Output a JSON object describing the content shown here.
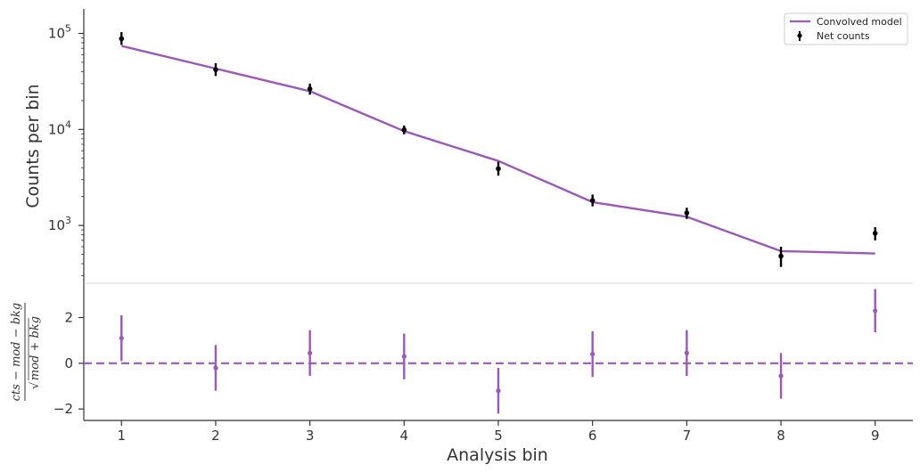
{
  "colors": {
    "model": "#9b59b6",
    "data": "#000000",
    "axis": "#333333"
  },
  "chart_data": [
    {
      "type": "line",
      "ylabel": "Counts per bin",
      "yscale": "log",
      "ylim": [
        250,
        180000
      ],
      "yticks": [
        {
          "value": 1000,
          "mantissa": "10",
          "exp": "3"
        },
        {
          "value": 10000,
          "mantissa": "10",
          "exp": "4"
        },
        {
          "value": 100000,
          "mantissa": "10",
          "exp": "5"
        }
      ],
      "legend": {
        "position": "top-right",
        "model_label": "Convolved model",
        "data_label": "Net counts"
      },
      "x": [
        1,
        2,
        3,
        4,
        5,
        6,
        7,
        8,
        9
      ],
      "series": [
        {
          "name": "Convolved model",
          "kind": "line",
          "values": [
            74000,
            43000,
            25000,
            9600,
            4700,
            1750,
            1230,
            540,
            510
          ]
        },
        {
          "name": "Net counts",
          "kind": "errorbar",
          "values": [
            88000,
            42000,
            26500,
            9900,
            3900,
            1820,
            1350,
            480,
            830
          ],
          "err_low": [
            76000,
            36000,
            23000,
            8900,
            3300,
            1580,
            1170,
            370,
            700
          ],
          "err_high": [
            103000,
            49000,
            30000,
            11000,
            4600,
            2100,
            1530,
            600,
            960
          ]
        }
      ]
    },
    {
      "type": "scatter",
      "xlabel": "Analysis bin",
      "ylabel": {
        "numerator": "cts − mod − bkg",
        "denominator": "mod + bkg"
      },
      "ylim": [
        -2.5,
        3.5
      ],
      "xlim": [
        0.6,
        9.4
      ],
      "xticks": [
        "1",
        "2",
        "3",
        "4",
        "5",
        "6",
        "7",
        "8",
        "9"
      ],
      "yticks": [
        {
          "value": -2,
          "label": "−2"
        },
        {
          "value": 0,
          "label": "0"
        },
        {
          "value": 2,
          "label": "2"
        }
      ],
      "x": [
        1,
        2,
        3,
        4,
        5,
        6,
        7,
        8,
        9
      ],
      "values": [
        1.1,
        -0.2,
        0.45,
        0.3,
        -1.2,
        0.4,
        0.45,
        -0.55,
        2.3
      ],
      "err": [
        1.0,
        1.0,
        1.0,
        1.0,
        1.0,
        1.0,
        1.0,
        1.0,
        0.95
      ],
      "zero_line": 0
    }
  ]
}
